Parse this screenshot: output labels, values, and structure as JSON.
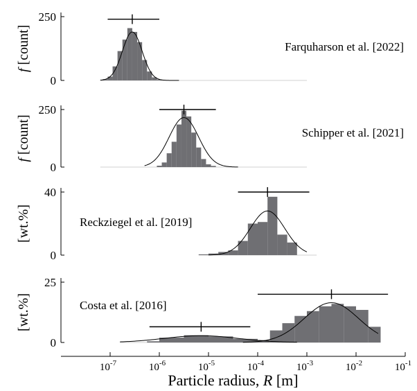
{
  "chart_data": [
    {
      "type": "bar",
      "label": "Farquharson et al. [2022]",
      "ylabel": "f [count]",
      "ylim": [
        0,
        250
      ],
      "yticks": [
        0,
        250
      ],
      "x_log10_bins": [
        [
          -7.15,
          -7.05,
          5
        ],
        [
          -7.05,
          -6.95,
          15
        ],
        [
          -6.95,
          -6.85,
          55
        ],
        [
          -6.85,
          -6.75,
          115
        ],
        [
          -6.75,
          -6.65,
          160
        ],
        [
          -6.65,
          -6.55,
          205
        ],
        [
          -6.55,
          -6.45,
          190
        ],
        [
          -6.45,
          -6.35,
          150
        ],
        [
          -6.35,
          -6.25,
          80
        ],
        [
          -6.25,
          -6.15,
          35
        ],
        [
          -6.15,
          -6.05,
          12
        ],
        [
          -6.05,
          -5.95,
          4
        ]
      ],
      "fit": {
        "mu_log10": -6.55,
        "sigma_log10": 0.2,
        "peak": 190,
        "range": [
          -7.2,
          -5.6
        ]
      },
      "error_bar": {
        "center_log10": -6.55,
        "lo_log10": -7.05,
        "hi_log10": -6.0,
        "y": 240
      },
      "baseline_log10": [
        -7.2,
        -3.0
      ]
    },
    {
      "type": "bar",
      "label": "Schipper et al. [2021]",
      "ylabel": "f [count]",
      "ylim": [
        0,
        250
      ],
      "yticks": [
        0,
        250
      ],
      "x_log10_bins": [
        [
          -6.05,
          -5.95,
          6
        ],
        [
          -5.95,
          -5.85,
          20
        ],
        [
          -5.85,
          -5.75,
          60
        ],
        [
          -5.75,
          -5.65,
          110
        ],
        [
          -5.65,
          -5.55,
          185
        ],
        [
          -5.55,
          -5.45,
          245
        ],
        [
          -5.45,
          -5.35,
          220
        ],
        [
          -5.35,
          -5.25,
          150
        ],
        [
          -5.25,
          -5.15,
          85
        ],
        [
          -5.15,
          -5.05,
          35
        ],
        [
          -5.05,
          -4.95,
          12
        ],
        [
          -4.95,
          -4.85,
          5
        ]
      ],
      "fit": {
        "mu_log10": -5.5,
        "sigma_log10": 0.3,
        "peak": 215,
        "range": [
          -6.3,
          -4.4
        ]
      },
      "error_bar": {
        "center_log10": -5.5,
        "lo_log10": -6.0,
        "hi_log10": -4.85,
        "y": 250
      },
      "baseline_log10": [
        -7.2,
        -3.0
      ]
    },
    {
      "type": "bar",
      "label": "Reckziegel et al. [2019]",
      "ylabel": "[wt.%]",
      "ylim": [
        0,
        40
      ],
      "yticks": [
        0,
        40
      ],
      "x_log10_bins": [
        [
          -5.2,
          -5.0,
          0.5
        ],
        [
          -5.0,
          -4.8,
          1
        ],
        [
          -4.8,
          -4.6,
          2
        ],
        [
          -4.6,
          -4.4,
          3
        ],
        [
          -4.4,
          -4.2,
          9
        ],
        [
          -4.2,
          -4.0,
          20
        ],
        [
          -4.0,
          -3.8,
          21
        ],
        [
          -3.8,
          -3.6,
          37
        ],
        [
          -3.6,
          -3.4,
          13
        ],
        [
          -3.4,
          -3.2,
          8
        ]
      ],
      "fit": {
        "mu_log10": -3.8,
        "sigma_log10": 0.35,
        "peak": 28,
        "range": [
          -5.0,
          -3.0
        ]
      },
      "error_bar": {
        "center_log10": -3.8,
        "lo_log10": -4.4,
        "hi_log10": -2.95,
        "y": 40
      },
      "baseline_log10": [
        -5.2,
        -2.8
      ]
    },
    {
      "type": "bar",
      "label": "Costa et al. [2016]",
      "ylabel": "[wt.%]",
      "ylim": [
        0,
        25
      ],
      "yticks": [
        0,
        25
      ],
      "x_log10_bins": [
        [
          -6.25,
          -6.0,
          0.5
        ],
        [
          -6.0,
          -5.5,
          2
        ],
        [
          -5.5,
          -5.0,
          3
        ],
        [
          -5.0,
          -4.5,
          2.5
        ],
        [
          -4.5,
          -4.0,
          1.5
        ],
        [
          -4.0,
          -3.75,
          1
        ],
        [
          -3.75,
          -3.5,
          5
        ],
        [
          -3.5,
          -3.25,
          8
        ],
        [
          -3.25,
          -3.0,
          11
        ],
        [
          -3.0,
          -2.75,
          13
        ],
        [
          -2.75,
          -2.5,
          15
        ],
        [
          -2.5,
          -2.25,
          16
        ],
        [
          -2.25,
          -2.0,
          15
        ],
        [
          -2.0,
          -1.75,
          13.5
        ],
        [
          -1.75,
          -1.5,
          6.5
        ]
      ],
      "fits": [
        {
          "mu_log10": -5.15,
          "sigma_log10": 0.75,
          "peak": 2.8,
          "range": [
            -6.8,
            -3.2
          ]
        },
        {
          "mu_log10": -2.5,
          "sigma_log10": 0.55,
          "peak": 16.5,
          "range": [
            -4.3,
            -1.55
          ]
        }
      ],
      "error_bars": [
        {
          "center_log10": -5.15,
          "lo_log10": -6.2,
          "hi_log10": -4.15,
          "y": 6.5
        },
        {
          "center_log10": -2.5,
          "lo_log10": -4.0,
          "hi_log10": -1.35,
          "y": 20
        }
      ],
      "baseline_log10": [
        -6.8,
        -1.5
      ]
    }
  ],
  "x_axis": {
    "type": "log",
    "range_log10": [
      -8,
      -1
    ],
    "tick_labels": [
      {
        "exp": -7,
        "base": "10",
        "sup": "-7"
      },
      {
        "exp": -6,
        "base": "10",
        "sup": "-6"
      },
      {
        "exp": -5,
        "base": "10",
        "sup": "-5"
      },
      {
        "exp": -4,
        "base": "10",
        "sup": "-4"
      },
      {
        "exp": -3,
        "base": "10",
        "sup": "-3"
      },
      {
        "exp": -2,
        "base": "10",
        "sup": "-2"
      },
      {
        "exp": -1,
        "base": "10",
        "sup": "-1"
      }
    ],
    "label_text": "Particle radius, ",
    "label_symbol": "R",
    "label_unit": " [m]"
  }
}
